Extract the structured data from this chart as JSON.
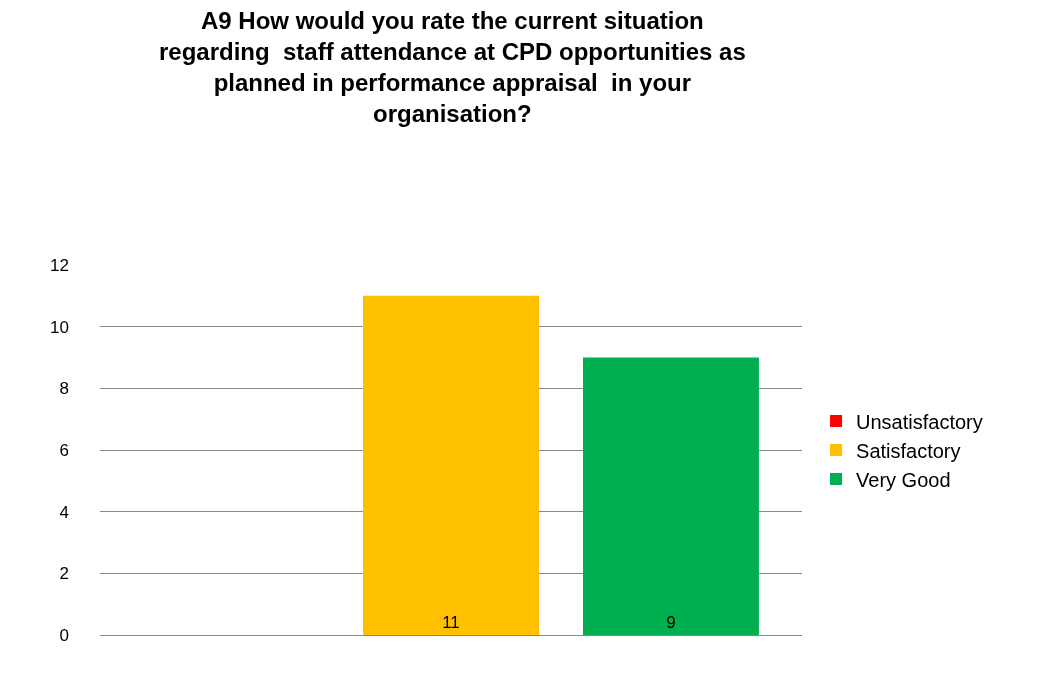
{
  "chart_data": {
    "type": "bar",
    "title": "A9 How would you rate the current situation\nregarding  staff attendance at CPD opportunities as\nplanned in performance appraisal  in your\norganisation?",
    "categories": [
      null
    ],
    "series": [
      {
        "name": "Unsatisfactory",
        "color": "#ff0000",
        "values": [
          0
        ],
        "value_labels": [
          null
        ]
      },
      {
        "name": "Satisfactory",
        "color": "#ffc000",
        "values": [
          11
        ],
        "value_labels": [
          "11"
        ]
      },
      {
        "name": "Very Good",
        "color": "#00b050",
        "values": [
          9
        ],
        "value_labels": [
          "9"
        ]
      }
    ],
    "ylim": [
      0,
      12
    ],
    "yticks": [
      0,
      2,
      4,
      6,
      8,
      10,
      12
    ],
    "grid": "y",
    "legend": "right"
  }
}
